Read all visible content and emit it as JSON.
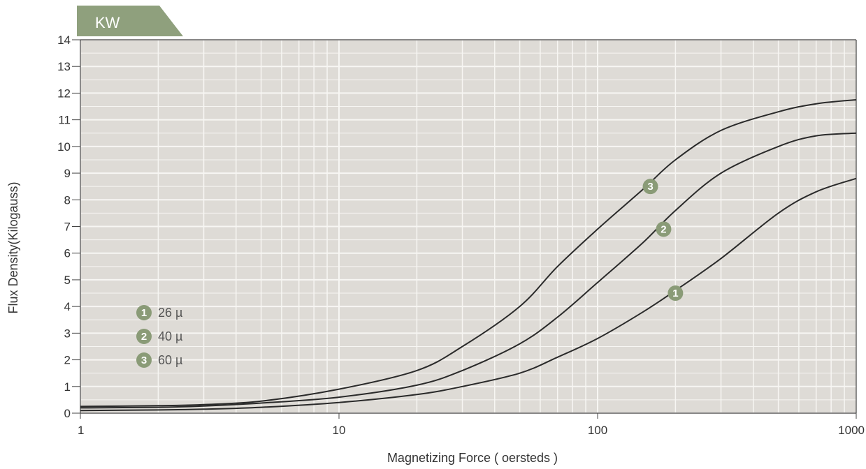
{
  "header_tab": {
    "label": "KW",
    "color": "#8fa07d"
  },
  "chart_data": {
    "type": "line",
    "xlabel": "Magnetizing Force ( oersteds )",
    "ylabel": "Flux Density(Kilogauss)",
    "xscale": "log",
    "xlim": [
      1,
      1000
    ],
    "ylim": [
      0,
      14
    ],
    "grid": true,
    "x_ticks": [
      "1",
      "10",
      "100",
      "1000"
    ],
    "y_ticks": [
      "0",
      "1",
      "2",
      "3",
      "4",
      "5",
      "6",
      "7",
      "8",
      "9",
      "10",
      "11",
      "12",
      "13",
      "14"
    ],
    "colors": {
      "plot_background": "#dedbd6",
      "grid": "#f7f6f3",
      "line": "#2a2a2a",
      "marker": "#8a9b77"
    },
    "legend_position": "left",
    "series": [
      {
        "name": "26 µ",
        "marker_label": "1",
        "x": [
          1,
          2,
          3,
          5,
          10,
          20,
          30,
          50,
          70,
          100,
          150,
          200,
          300,
          500,
          700,
          1000
        ],
        "y": [
          0.1,
          0.12,
          0.15,
          0.22,
          0.4,
          0.7,
          1.0,
          1.5,
          2.1,
          2.8,
          3.8,
          4.6,
          5.8,
          7.5,
          8.3,
          8.8
        ]
      },
      {
        "name": "40 µ",
        "marker_label": "2",
        "x": [
          1,
          2,
          3,
          5,
          10,
          20,
          30,
          50,
          70,
          100,
          150,
          200,
          300,
          500,
          700,
          1000
        ],
        "y": [
          0.2,
          0.22,
          0.27,
          0.38,
          0.6,
          1.05,
          1.6,
          2.6,
          3.6,
          4.9,
          6.4,
          7.6,
          9.0,
          10.0,
          10.4,
          10.5
        ]
      },
      {
        "name": "60 µ",
        "marker_label": "3",
        "x": [
          1,
          2,
          3,
          5,
          10,
          20,
          30,
          50,
          70,
          100,
          150,
          200,
          300,
          500,
          700,
          1000
        ],
        "y": [
          0.25,
          0.28,
          0.32,
          0.45,
          0.9,
          1.6,
          2.5,
          4.0,
          5.5,
          6.9,
          8.4,
          9.5,
          10.6,
          11.3,
          11.6,
          11.75
        ]
      }
    ],
    "marker_positions": [
      {
        "series": 0,
        "x": 200,
        "y": 4.5
      },
      {
        "series": 1,
        "x": 180,
        "y": 6.9
      },
      {
        "series": 2,
        "x": 160,
        "y": 8.5
      }
    ]
  }
}
